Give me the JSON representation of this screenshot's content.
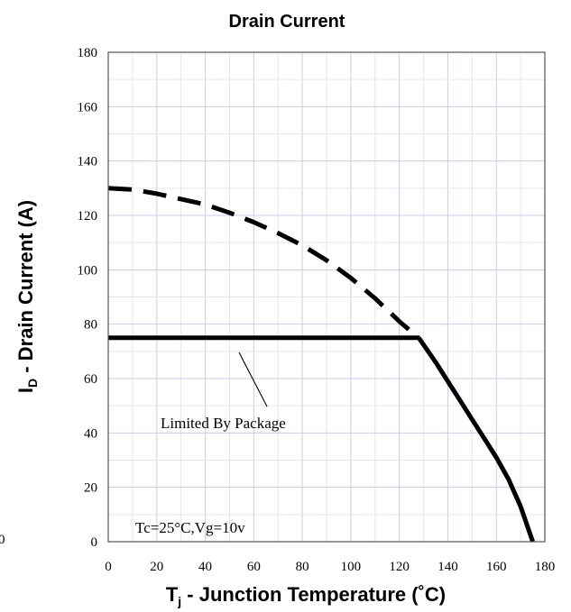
{
  "chart_data": {
    "type": "line",
    "title": "Drain Current",
    "xlabel": "T",
    "xlabel_sub": "j",
    "xlabel_rest": " - Junction Temperature (˚C)",
    "ylabel": "I",
    "ylabel_sub": "D",
    "ylabel_rest": " - Drain Current (A)",
    "xlim": [
      0,
      180
    ],
    "ylim": [
      0,
      180
    ],
    "x_ticks": [
      0,
      20,
      40,
      60,
      80,
      100,
      120,
      140,
      160,
      180
    ],
    "y_ticks": [
      0,
      20,
      40,
      60,
      80,
      100,
      120,
      140,
      160,
      180
    ],
    "grid": true,
    "series": [
      {
        "style": "dashed",
        "x": [
          0,
          10,
          20,
          30,
          40,
          50,
          60,
          70,
          80,
          90,
          100,
          110,
          120,
          128
        ],
        "y": [
          130,
          129.5,
          128,
          126,
          124,
          121,
          117.5,
          113.5,
          109,
          103.5,
          97,
          89.5,
          81,
          75
        ]
      },
      {
        "style": "solid",
        "x": [
          0,
          128
        ],
        "y": [
          75,
          75
        ]
      },
      {
        "style": "solid",
        "x": [
          128,
          135,
          140,
          145,
          150,
          155,
          160,
          165,
          170,
          175
        ],
        "y": [
          75,
          66,
          59,
          52,
          45,
          38,
          31,
          23,
          13,
          0
        ]
      }
    ],
    "annotations": [
      {
        "text": "Limited By Package",
        "arrow_to": [
          48,
          75
        ]
      },
      {
        "text": "Tc=25°C,Vg=10v"
      }
    ],
    "extra_tick_label": "0"
  }
}
